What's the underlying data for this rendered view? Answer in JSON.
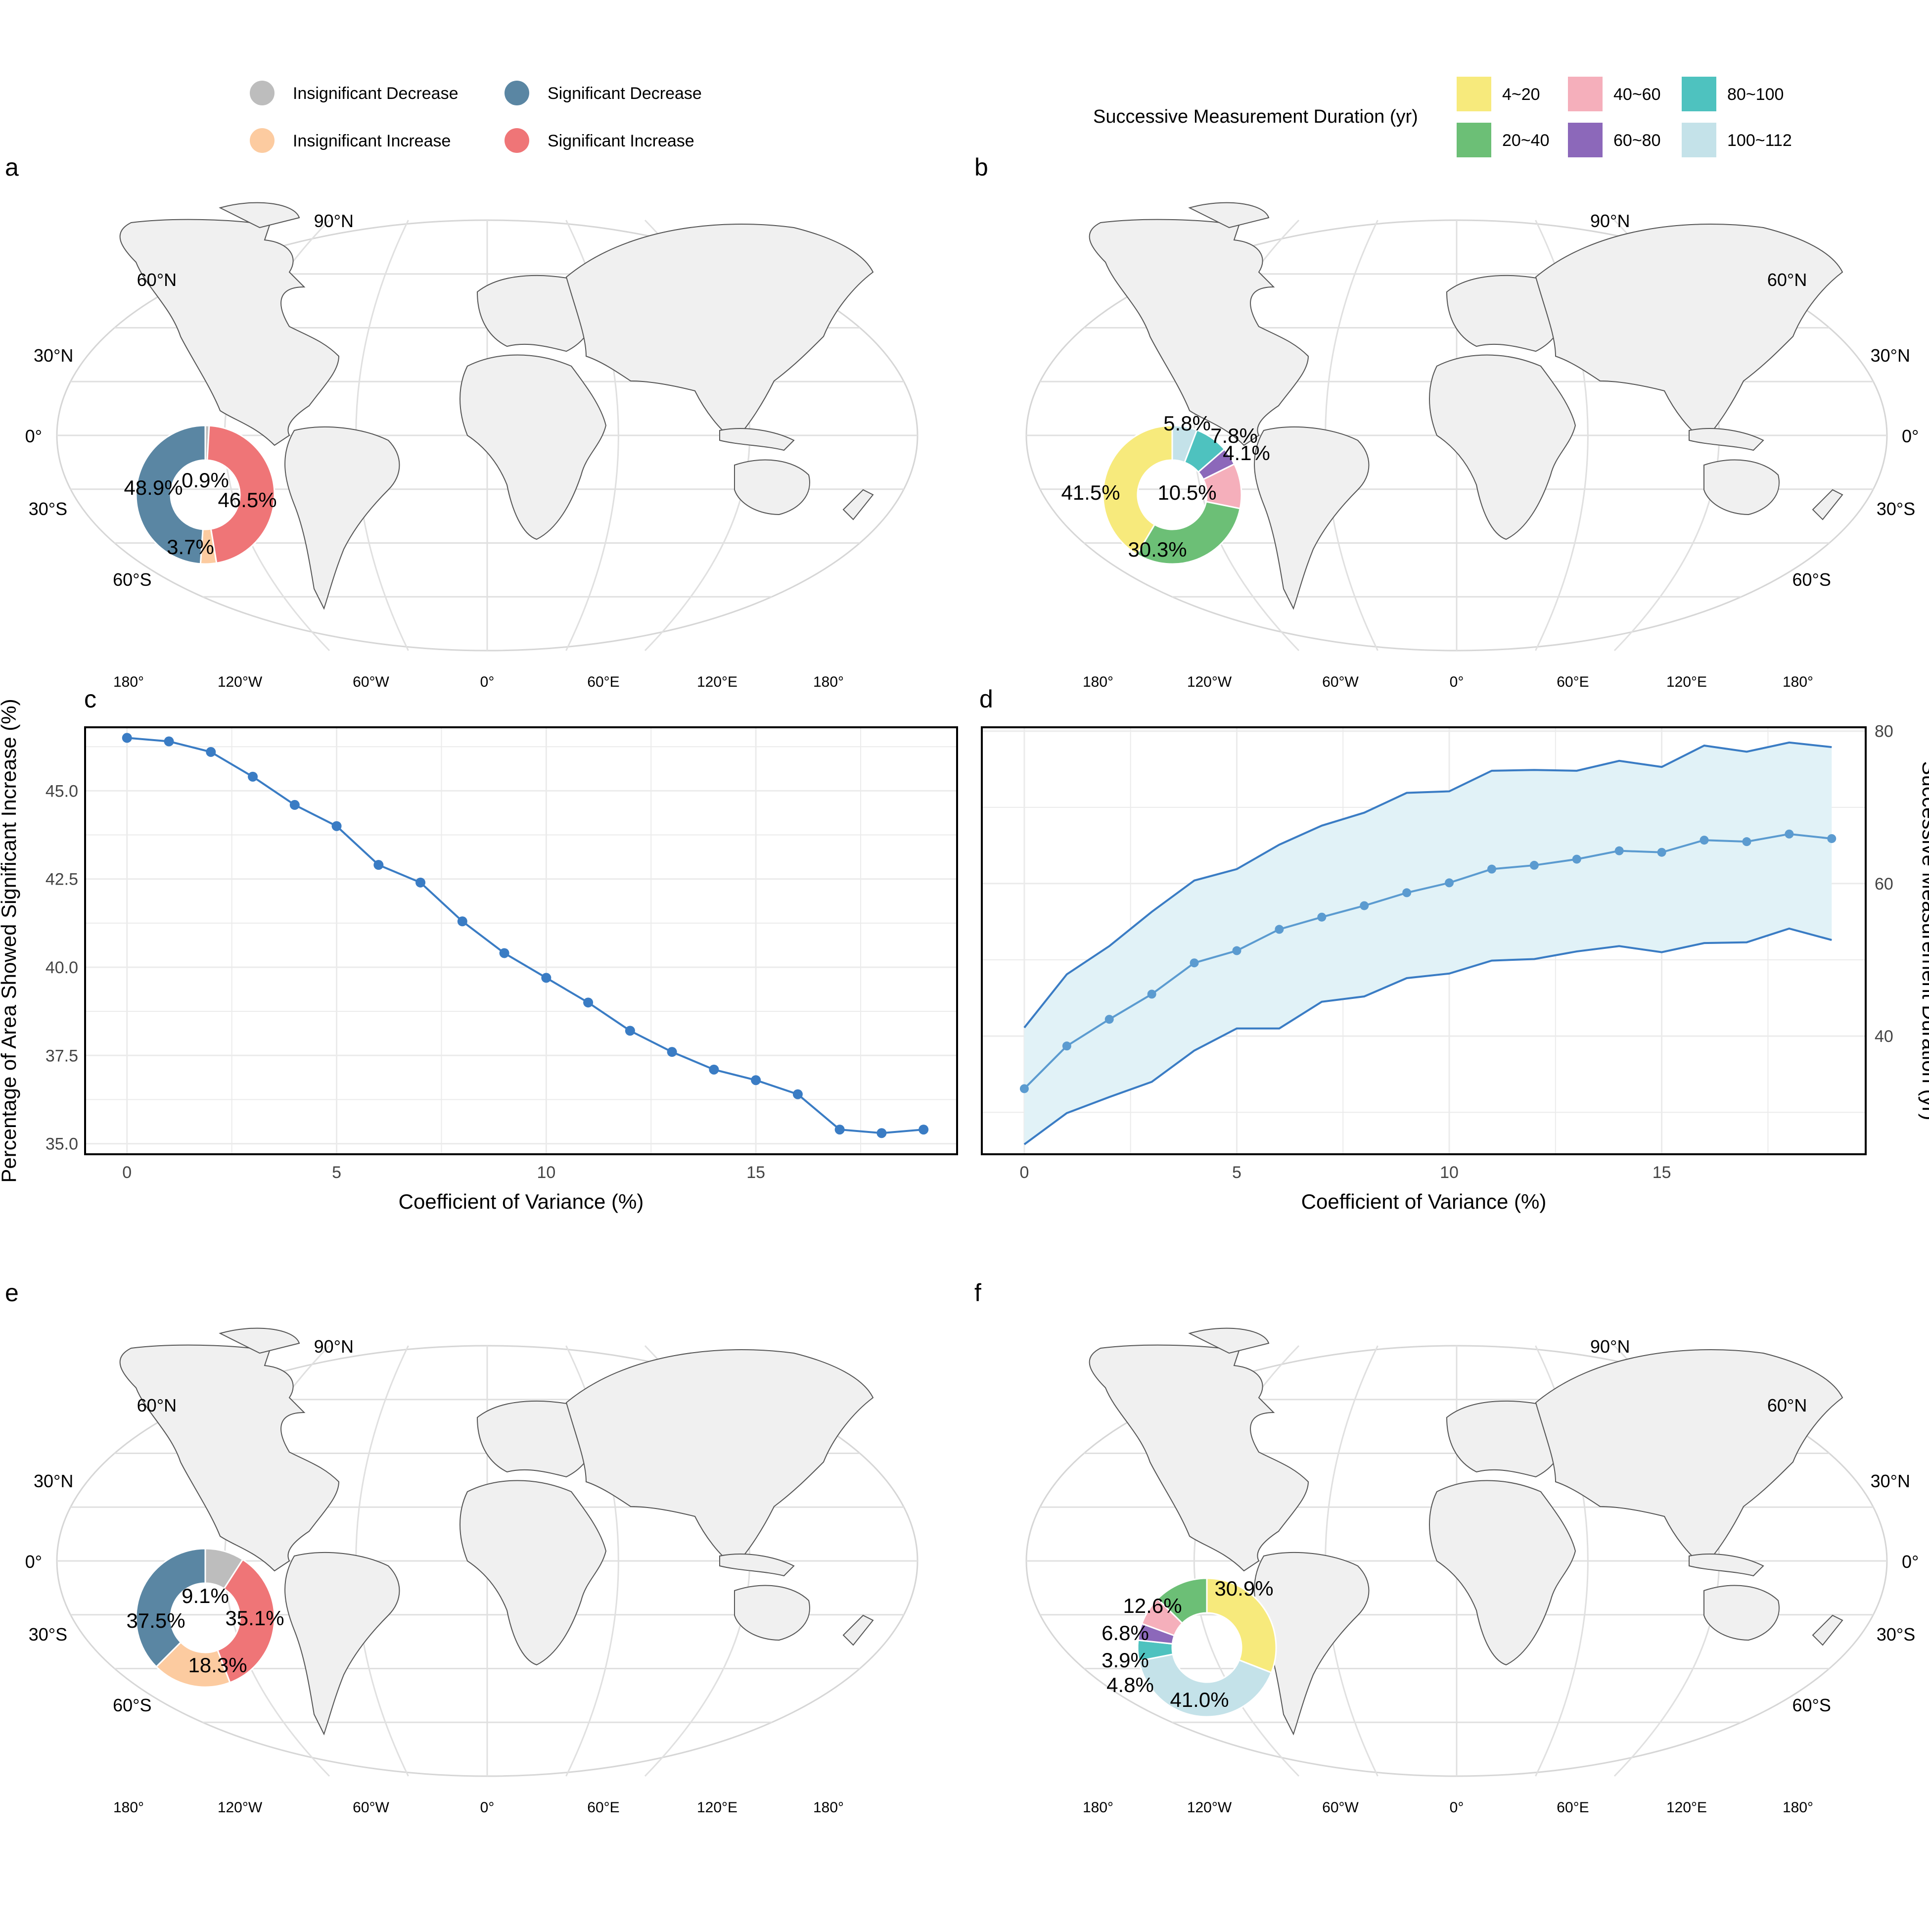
{
  "colors": {
    "insig_decrease": "#bdbdbd",
    "insig_increase": "#fccba0",
    "sig_decrease": "#5a86a3",
    "sig_increase": "#ef7577",
    "dur_4_20": "#f7ea7c",
    "dur_20_40": "#6cbf76",
    "dur_40_60": "#f5afbb",
    "dur_60_80": "#8c68ba",
    "dur_80_100": "#4ec2bf",
    "dur_100_112": "#c4e2e9",
    "line": "#3a7cc4",
    "line_light": "#5b9bd0",
    "band": "#e1f2f7",
    "land": "#f0f0f0",
    "grid": "#e4e4e4"
  },
  "legend_trend": {
    "items": [
      {
        "label": "Insignificant Decrease",
        "color_key": "insig_decrease"
      },
      {
        "label": "Significant Decrease",
        "color_key": "sig_decrease"
      },
      {
        "label": "Insignificant Increase",
        "color_key": "insig_increase"
      },
      {
        "label": "Significant Increase",
        "color_key": "sig_increase"
      }
    ]
  },
  "legend_duration": {
    "title": "Successive Measurement Duration (yr)",
    "items": [
      {
        "label": "4~20",
        "color_key": "dur_4_20"
      },
      {
        "label": "40~60",
        "color_key": "dur_40_60"
      },
      {
        "label": "80~100",
        "color_key": "dur_80_100"
      },
      {
        "label": "20~40",
        "color_key": "dur_20_40"
      },
      {
        "label": "60~80",
        "color_key": "dur_60_80"
      },
      {
        "label": "100~112",
        "color_key": "dur_100_112"
      }
    ]
  },
  "map_axes": {
    "lat_labels": [
      "90°N",
      "60°N",
      "30°N",
      "0°",
      "30°S",
      "60°S"
    ],
    "lon_labels": [
      "180°",
      "120°W",
      "60°W",
      "0°",
      "60°E",
      "120°E",
      "180°"
    ]
  },
  "panels": {
    "a": {
      "tag": "a",
      "donut": [
        {
          "label": "0.9%",
          "value": 0.9,
          "color_key": "insig_decrease"
        },
        {
          "label": "46.5%",
          "value": 46.5,
          "color_key": "sig_increase"
        },
        {
          "label": "3.7%",
          "value": 3.7,
          "color_key": "insig_increase"
        },
        {
          "label": "48.9%",
          "value": 48.9,
          "color_key": "sig_decrease"
        }
      ]
    },
    "b": {
      "tag": "b",
      "donut": [
        {
          "label": "5.8%",
          "value": 5.8,
          "color_key": "dur_100_112"
        },
        {
          "label": "7.8%",
          "value": 7.8,
          "color_key": "dur_80_100"
        },
        {
          "label": "4.1%",
          "value": 4.1,
          "color_key": "dur_60_80"
        },
        {
          "label": "10.5%",
          "value": 10.5,
          "color_key": "dur_40_60"
        },
        {
          "label": "30.3%",
          "value": 30.3,
          "color_key": "dur_20_40"
        },
        {
          "label": "41.5%",
          "value": 41.5,
          "color_key": "dur_4_20"
        }
      ]
    },
    "c": {
      "tag": "c"
    },
    "d": {
      "tag": "d"
    },
    "e": {
      "tag": "e",
      "donut": [
        {
          "label": "9.1%",
          "value": 9.1,
          "color_key": "insig_decrease"
        },
        {
          "label": "35.1%",
          "value": 35.1,
          "color_key": "sig_increase"
        },
        {
          "label": "18.3%",
          "value": 18.3,
          "color_key": "insig_increase"
        },
        {
          "label": "37.5%",
          "value": 37.5,
          "color_key": "sig_decrease"
        }
      ]
    },
    "f": {
      "tag": "f",
      "donut": [
        {
          "label": "30.9%",
          "value": 30.9,
          "color_key": "dur_4_20"
        },
        {
          "label": "41.0%",
          "value": 41.0,
          "color_key": "dur_100_112"
        },
        {
          "label": "4.8%",
          "value": 4.8,
          "color_key": "dur_80_100"
        },
        {
          "label": "3.9%",
          "value": 3.9,
          "color_key": "dur_60_80"
        },
        {
          "label": "6.8%",
          "value": 6.8,
          "color_key": "dur_40_60"
        },
        {
          "label": "12.6%",
          "value": 12.6,
          "color_key": "dur_20_40"
        }
      ]
    }
  },
  "chart_data": [
    {
      "panel": "c",
      "type": "line",
      "xlabel": "Coefficient of Variance (%)",
      "ylabel": "Percentage of Area Showed Significant Increase (%)",
      "x": [
        0,
        1,
        2,
        3,
        4,
        5,
        6,
        7,
        8,
        9,
        10,
        11,
        12,
        13,
        14,
        15,
        16,
        17,
        18,
        19
      ],
      "series": [
        {
          "values": [
            46.5,
            46.4,
            46.1,
            45.4,
            44.6,
            44.0,
            42.9,
            42.4,
            41.3,
            40.4,
            39.7,
            39.0,
            38.2,
            37.6,
            37.1,
            36.8,
            36.4,
            35.4,
            35.3,
            35.4
          ]
        }
      ],
      "xlim": [
        -1,
        19.8
      ],
      "ylim": [
        34.7,
        46.8
      ],
      "xticks": [
        0,
        5,
        10,
        15
      ],
      "yticks": [
        35.0,
        37.5,
        40.0,
        42.5,
        45.0
      ],
      "ytick_labels": [
        "35.0",
        "37.5",
        "40.0",
        "42.5",
        "45.0"
      ],
      "grid": true
    },
    {
      "panel": "d",
      "type": "area",
      "xlabel": "Coefficient of Variance (%)",
      "ylabel": "Successive Measurement Duration (yr)",
      "x": [
        0,
        1,
        2,
        3,
        4,
        5,
        6,
        7,
        8,
        9,
        10,
        11,
        12,
        13,
        14,
        15,
        16,
        17,
        18,
        19
      ],
      "series": [
        {
          "values": [
            33.1,
            38.7,
            42.2,
            45.5,
            49.6,
            51.2,
            54.0,
            55.6,
            57.1,
            58.8,
            60.1,
            61.9,
            62.4,
            63.2,
            64.3,
            64.1,
            65.7,
            65.5,
            66.5,
            65.9
          ]
        },
        {
          "values": [
            41.1,
            48.1,
            51.8,
            56.3,
            60.4,
            61.9,
            65.1,
            67.6,
            69.3,
            71.9,
            72.1,
            74.8,
            74.9,
            74.8,
            76.1,
            75.3,
            78.1,
            77.3,
            78.5,
            77.9
          ]
        },
        {
          "values": [
            25.8,
            29.9,
            32.0,
            34.0,
            38.1,
            41.0,
            41.0,
            44.5,
            45.2,
            47.6,
            48.2,
            49.9,
            50.1,
            51.1,
            51.8,
            51.0,
            52.2,
            52.3,
            54.1,
            52.6
          ]
        }
      ],
      "xlim": [
        -1,
        19.8
      ],
      "ylim": [
        24.5,
        80.5
      ],
      "xticks": [
        0,
        5,
        10,
        15
      ],
      "yticks": [
        40,
        60,
        80
      ],
      "ytick_labels": [
        "40",
        "60",
        "80"
      ],
      "yaxis_side": "right",
      "grid": true
    }
  ]
}
